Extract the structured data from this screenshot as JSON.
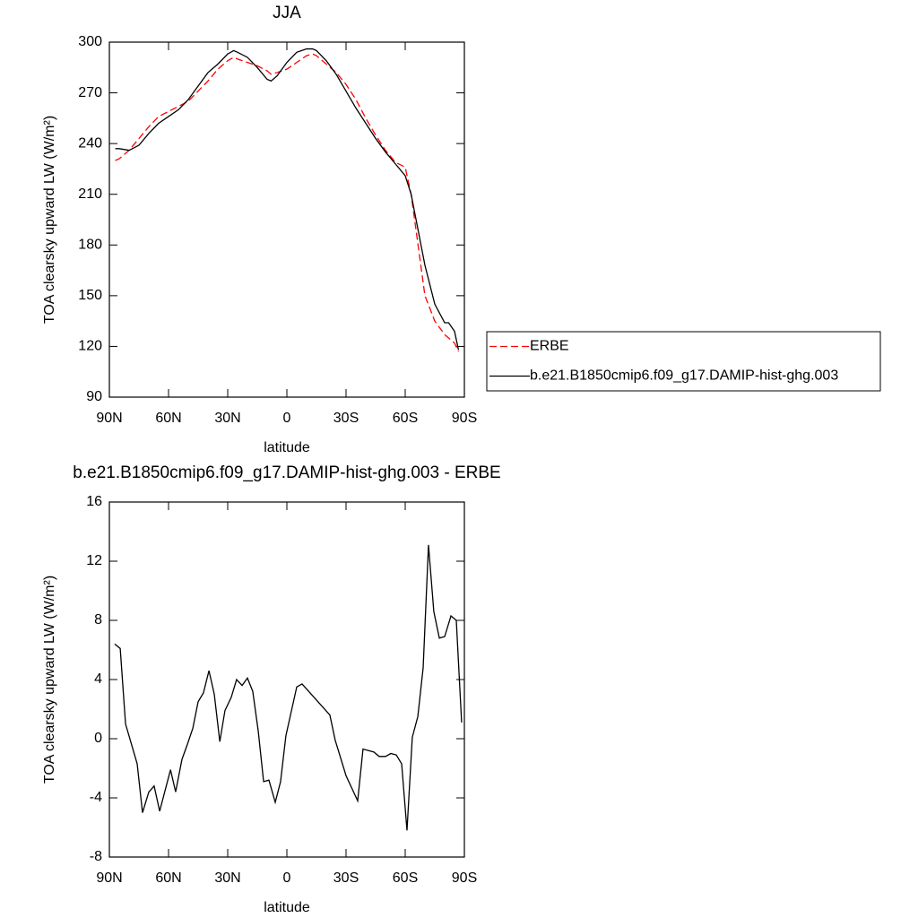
{
  "chart_data": [
    {
      "type": "line",
      "title": "JJA",
      "xlabel": "latitude",
      "ylabel": "TOA clearsky upward LW (W/m²)",
      "x": [
        87,
        85,
        80,
        75,
        70,
        65,
        60,
        55,
        50,
        45,
        40,
        35,
        30,
        27,
        25,
        20,
        15,
        10,
        8,
        5,
        0,
        -5,
        -10,
        -13,
        -15,
        -20,
        -25,
        -30,
        -35,
        -40,
        -45,
        -50,
        -55,
        -60,
        -63,
        -65,
        -70,
        -75,
        -80,
        -82,
        -85,
        -87
      ],
      "series": [
        {
          "name": "ERBE",
          "color": "#ff0000",
          "linestyle": "dashed",
          "values": [
            230,
            231,
            236,
            243,
            250,
            256,
            259,
            262,
            265,
            271,
            277,
            284,
            289,
            291,
            290,
            288,
            286,
            283,
            281,
            282,
            284,
            288,
            292,
            293,
            292,
            287,
            282,
            275,
            266,
            255,
            245,
            236,
            229,
            226,
            210,
            193,
            150,
            135,
            127,
            125,
            122,
            117
          ]
        },
        {
          "name": "b.e21.B1850cmip6.f09_g17.DAMIP-hist-ghg.003",
          "color": "#000000",
          "linestyle": "solid",
          "values": [
            237,
            237,
            236,
            239,
            246,
            252,
            256,
            260,
            266,
            274,
            282,
            287,
            293,
            295,
            294,
            291,
            285,
            278,
            277,
            280,
            288,
            294,
            296,
            296,
            295,
            289,
            281,
            271,
            261,
            252,
            243,
            235,
            228,
            221,
            210,
            198,
            168,
            145,
            134,
            134,
            129,
            118
          ]
        }
      ],
      "xlim": [
        90,
        -90
      ],
      "xticks": [
        {
          "value": 90,
          "label": "90N"
        },
        {
          "value": 60,
          "label": "60N"
        },
        {
          "value": 30,
          "label": "30N"
        },
        0,
        {
          "value": -30,
          "label": "30S"
        },
        {
          "value": -60,
          "label": "60S"
        },
        {
          "value": -90,
          "label": "90S"
        }
      ],
      "ylim": [
        90,
        300
      ],
      "yticks": [
        90,
        120,
        150,
        180,
        210,
        240,
        270,
        300
      ],
      "legend": "right"
    },
    {
      "type": "line",
      "title": "b.e21.B1850cmip6.f09_g17.DAMIP-hist-ghg.003 - ERBE",
      "xlabel": "latitude",
      "ylabel": "TOA clearsky upward LW (W/m²)",
      "x": [
        87.3,
        84.5,
        81.8,
        75.9,
        73.2,
        70,
        67.3,
        64.5,
        59,
        56.4,
        53.2,
        50.5,
        47.7,
        45,
        42.3,
        39.5,
        36.8,
        34,
        31.4,
        28.2,
        25.5,
        22.7,
        20,
        17.3,
        14.5,
        11.8,
        9.1,
        5.9,
        3.2,
        0.5,
        -5,
        -7.7,
        -21.8,
        -24.5,
        -30,
        -35.9,
        -38.6,
        -41.4,
        -44.1,
        -46.8,
        -50,
        -52.7,
        -55.5,
        -58.2,
        -60.9,
        -63.6,
        -66.4,
        -69.1,
        -71.8,
        -74.5,
        -77.3,
        -80,
        -83.2,
        -85.9,
        -88.6
      ],
      "values": [
        6.4,
        6.1,
        1.0,
        -1.7,
        -5.0,
        -3.6,
        -3.2,
        -4.9,
        -2.1,
        -3.6,
        -1.4,
        -0.4,
        0.7,
        2.5,
        3.1,
        4.6,
        3.0,
        -0.2,
        1.9,
        2.8,
        4.0,
        3.6,
        4.1,
        3.2,
        0.5,
        -2.9,
        -2.8,
        -4.3,
        -2.9,
        0.2,
        3.5,
        3.7,
        1.6,
        -0.1,
        -2.5,
        -4.2,
        -0.7,
        -0.8,
        -0.9,
        -1.2,
        -1.2,
        -1.0,
        -1.1,
        -1.7,
        -6.2,
        0.1,
        1.5,
        4.8,
        13.1,
        8.6,
        6.8,
        6.9,
        8.3,
        8.0,
        1.1
      ],
      "color": "#000000",
      "xlim": [
        90,
        -90
      ],
      "xticks": [
        {
          "value": 90,
          "label": "90N"
        },
        {
          "value": 60,
          "label": "60N"
        },
        {
          "value": 30,
          "label": "30N"
        },
        0,
        {
          "value": -30,
          "label": "30S"
        },
        {
          "value": -60,
          "label": "60S"
        },
        {
          "value": -90,
          "label": "90S"
        }
      ],
      "ylim": [
        -8,
        16
      ],
      "yticks": [
        -8,
        -4,
        0,
        4,
        8,
        12,
        16
      ]
    }
  ]
}
